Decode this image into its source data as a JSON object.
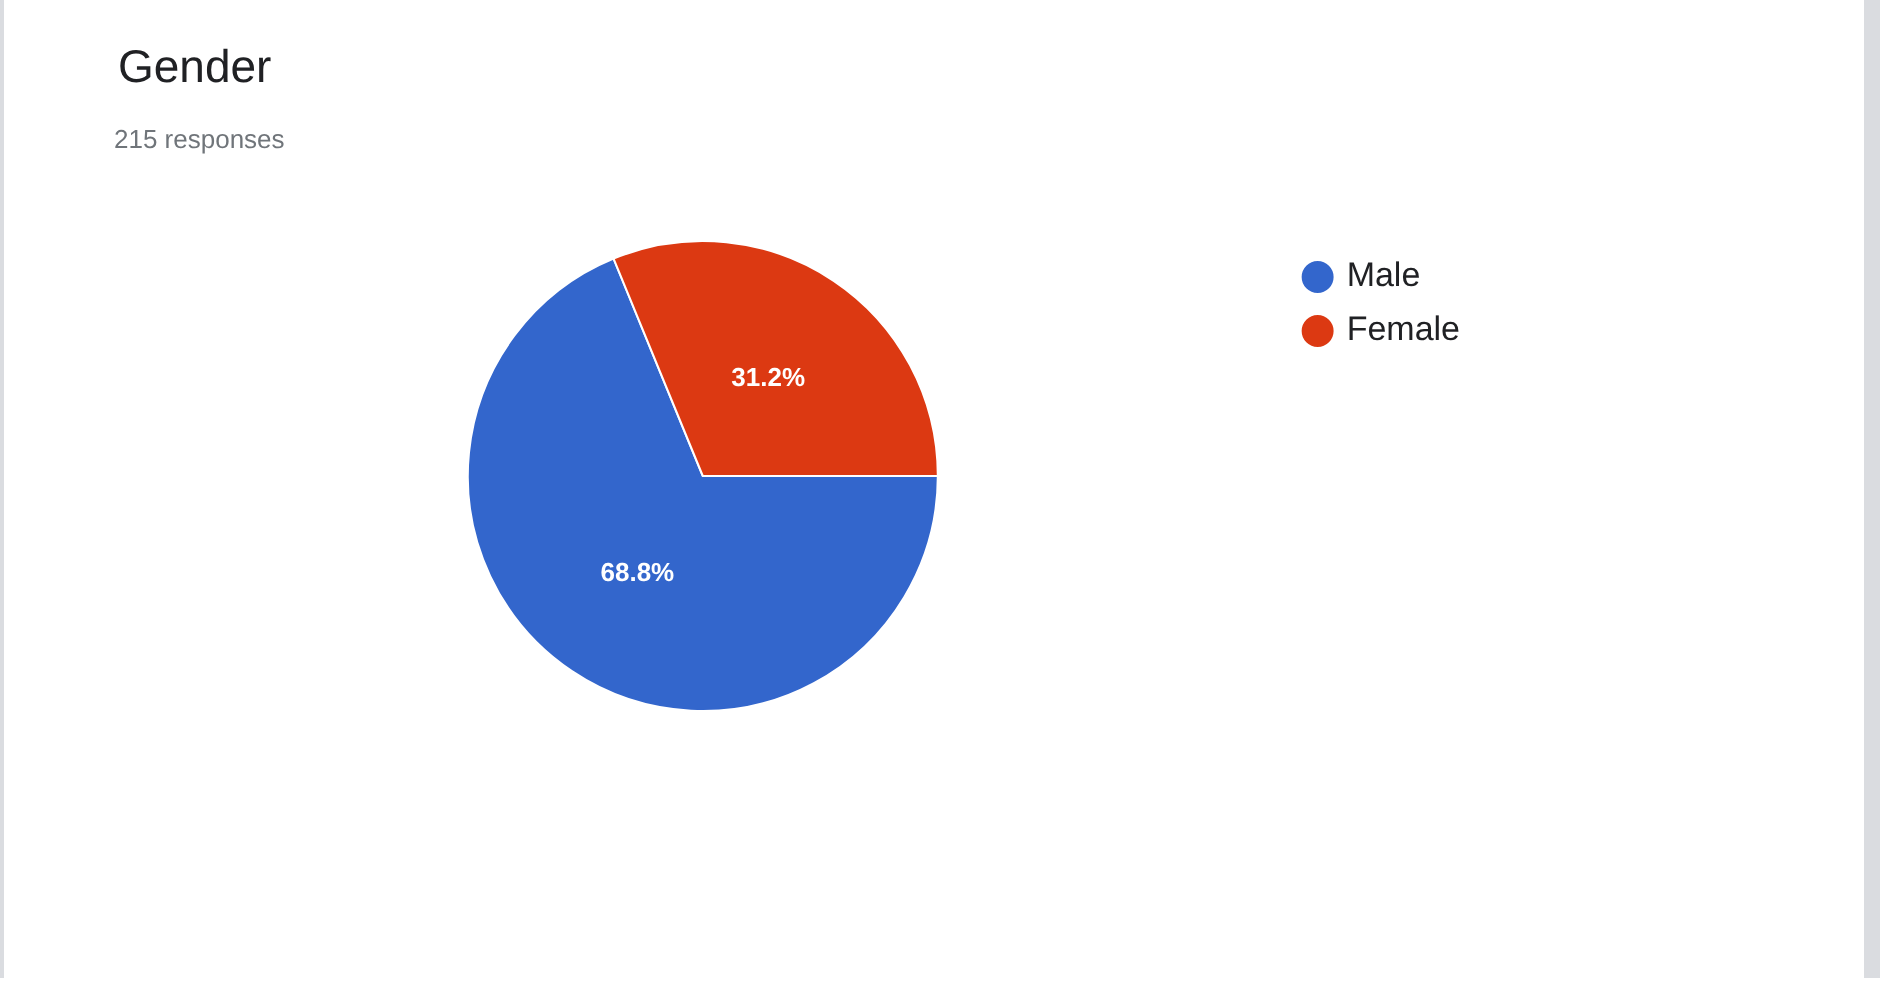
{
  "chart_data": {
    "type": "pie",
    "title": "Gender",
    "subtitle": "215 responses",
    "categories": [
      "Male",
      "Female"
    ],
    "values": [
      68.8,
      31.2
    ],
    "colors": [
      "#3366cc",
      "#dc3912"
    ],
    "value_labels": [
      "68.8%",
      "31.2%"
    ],
    "legend": "right"
  }
}
